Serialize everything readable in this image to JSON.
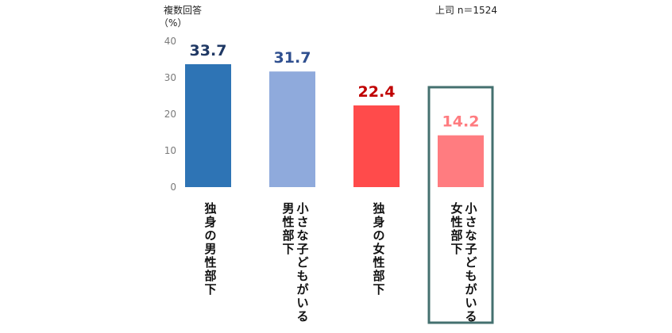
{
  "chart_data": {
    "type": "bar",
    "title": "",
    "ylabel_line1": "複数回答",
    "ylabel_line2": "（%）",
    "sample_note": "上司 n＝1524",
    "ylim": [
      0,
      40
    ],
    "yticks": [
      "40",
      "30",
      "20",
      "10",
      "0"
    ],
    "grid": false,
    "categories": [
      {
        "lines": [
          "独身の男性部下"
        ]
      },
      {
        "lines": [
          "小さな子どもがいる",
          "男性部下"
        ]
      },
      {
        "lines": [
          "独身の女性部下"
        ]
      },
      {
        "lines": [
          "小さな子どもがいる",
          "女性部下"
        ]
      }
    ],
    "values": [
      33.7,
      31.7,
      22.4,
      14.2
    ],
    "value_labels": [
      "33.7",
      "31.7",
      "22.4",
      "14.2"
    ],
    "colors": {
      "bars": [
        "#2e74b5",
        "#8faadc",
        "#ff4b4b",
        "#ff7c80"
      ],
      "labels": [
        "#1f3864",
        "#2f4f8f",
        "#c00000",
        "#ff7c80"
      ],
      "highlight_box": "#44706f"
    },
    "highlight_index": 3
  }
}
